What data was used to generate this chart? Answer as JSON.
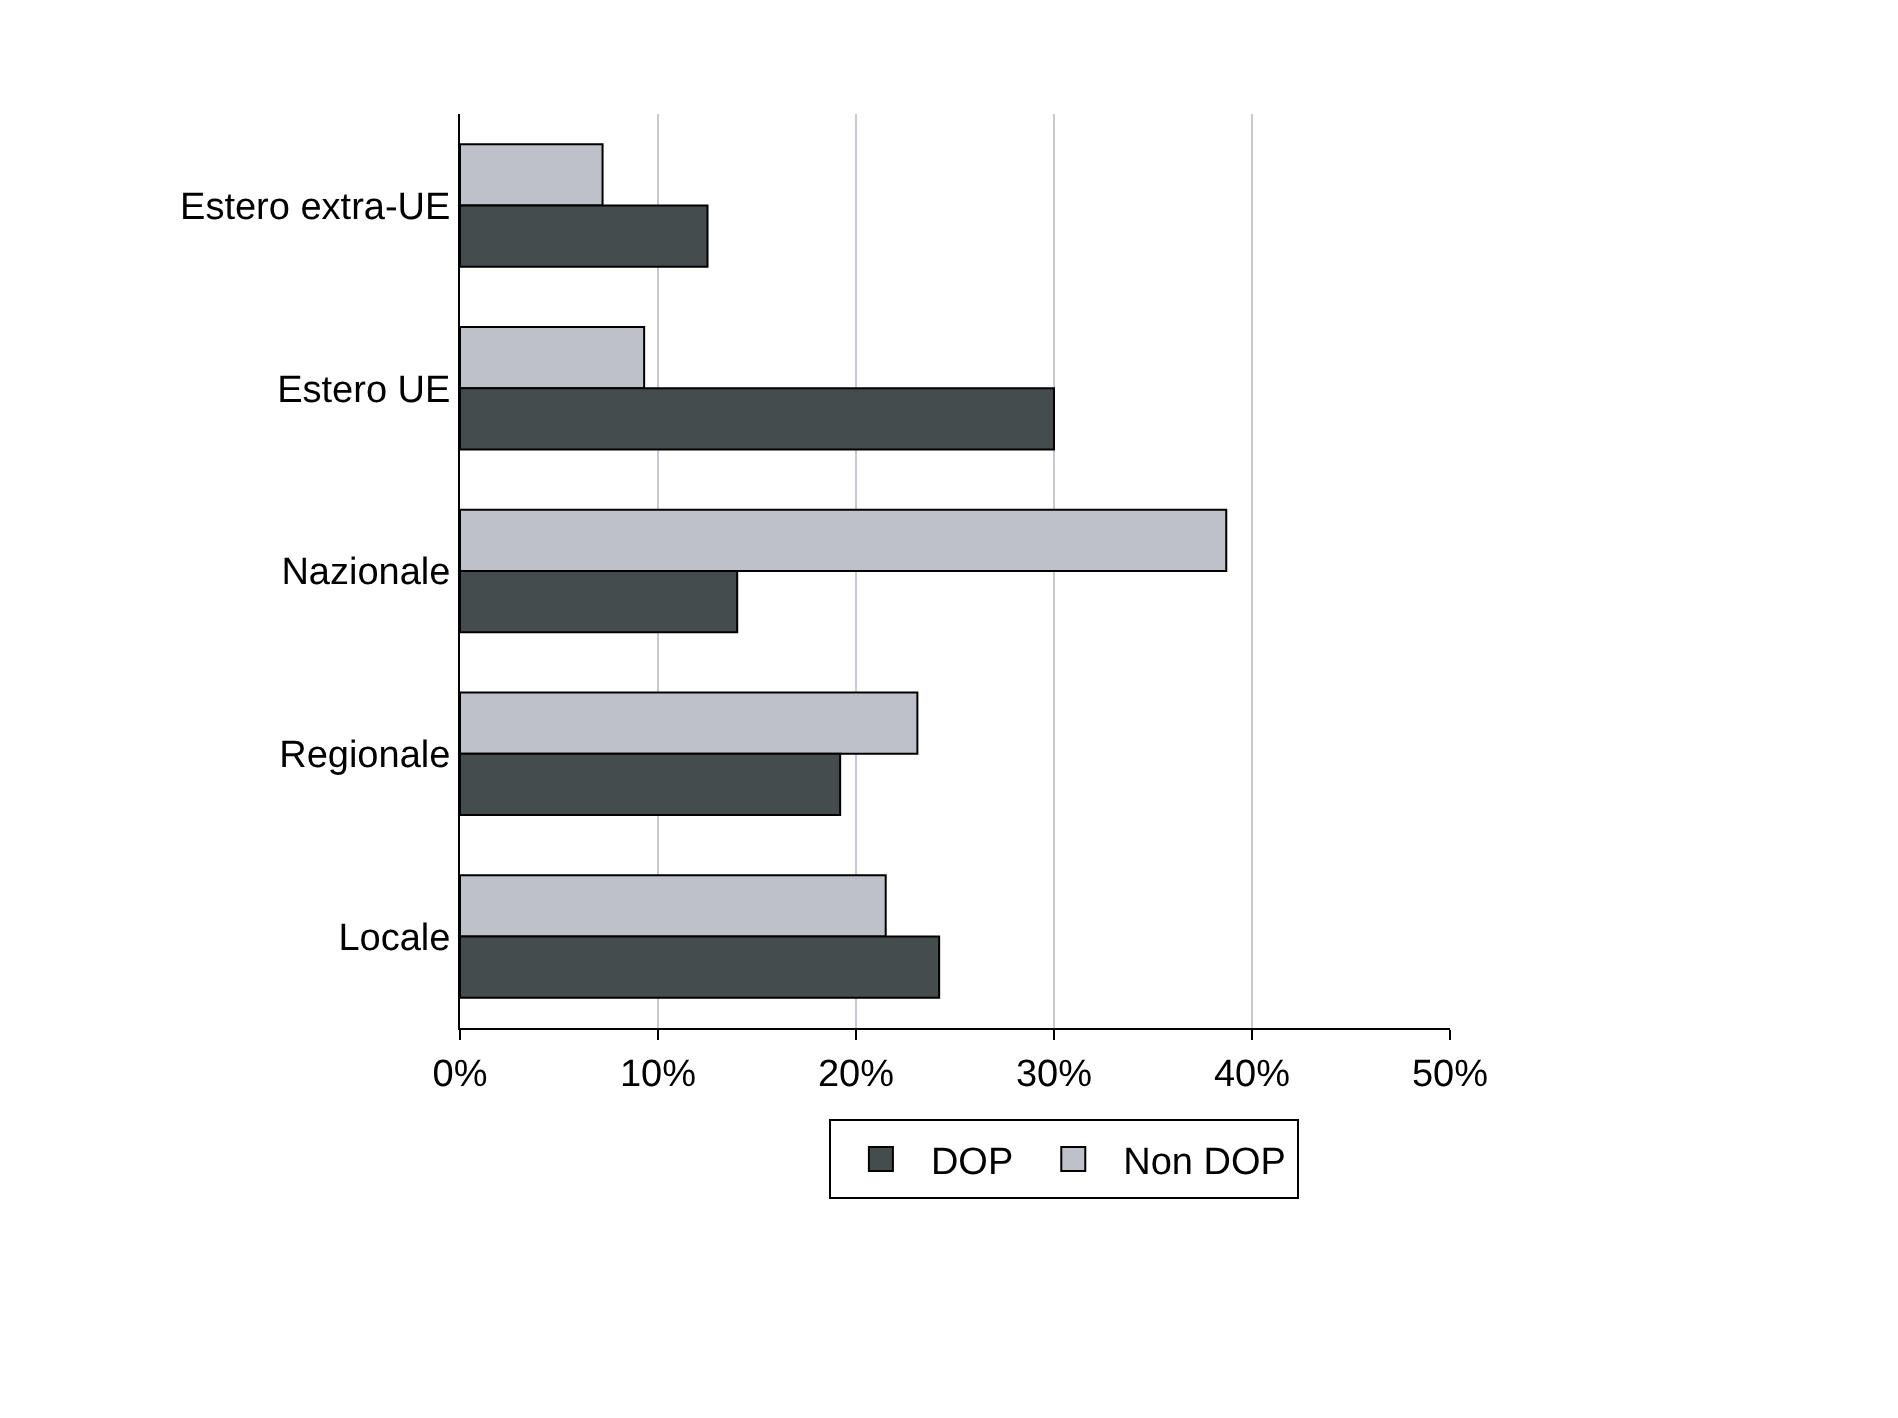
{
  "chart_data": {
    "type": "bar",
    "orientation": "horizontal",
    "categories": [
      "Estero extra-UE",
      "Estero UE",
      "Nazionale",
      "Regionale",
      "Locale"
    ],
    "series": [
      {
        "name": "DOP",
        "color": "#454c4e",
        "values": [
          12.5,
          30.0,
          14.0,
          19.2,
          24.2
        ]
      },
      {
        "name": "Non DOP",
        "color": "#bfc1c8",
        "values": [
          7.2,
          9.3,
          38.7,
          23.1,
          21.5
        ]
      }
    ],
    "xlim": [
      0,
      50
    ],
    "xticks": [
      {
        "value": 0,
        "label": "0%"
      },
      {
        "value": 10,
        "label": "10%"
      },
      {
        "value": 20,
        "label": "20%"
      },
      {
        "value": 30,
        "label": "30%"
      },
      {
        "value": 40,
        "label": "40%"
      },
      {
        "value": 50,
        "label": "50%"
      }
    ],
    "grid": "x",
    "legend": "bottom"
  }
}
